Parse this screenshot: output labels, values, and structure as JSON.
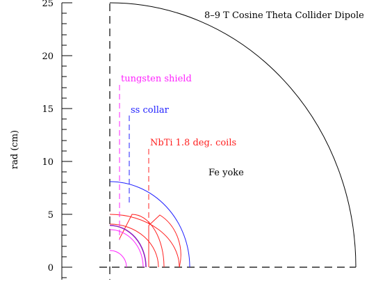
{
  "diagram": {
    "title": "8–9 T Cosine Theta Collider Dipole",
    "ylabel": "rad (cm)",
    "yticks": [
      "0",
      "5",
      "10",
      "15",
      "20",
      "25"
    ],
    "labels": {
      "tungsten": "tungsten shield",
      "collar": "ss collar",
      "coils": "NbTi 1.8 deg. coils",
      "yoke": "Fe yoke"
    },
    "colors": {
      "yoke": "#000000",
      "collar": "#2020ff",
      "coils": "#ff2020",
      "tungsten": "#ff20ff",
      "pipe": "#9020c0",
      "axis": "#000000"
    }
  }
}
